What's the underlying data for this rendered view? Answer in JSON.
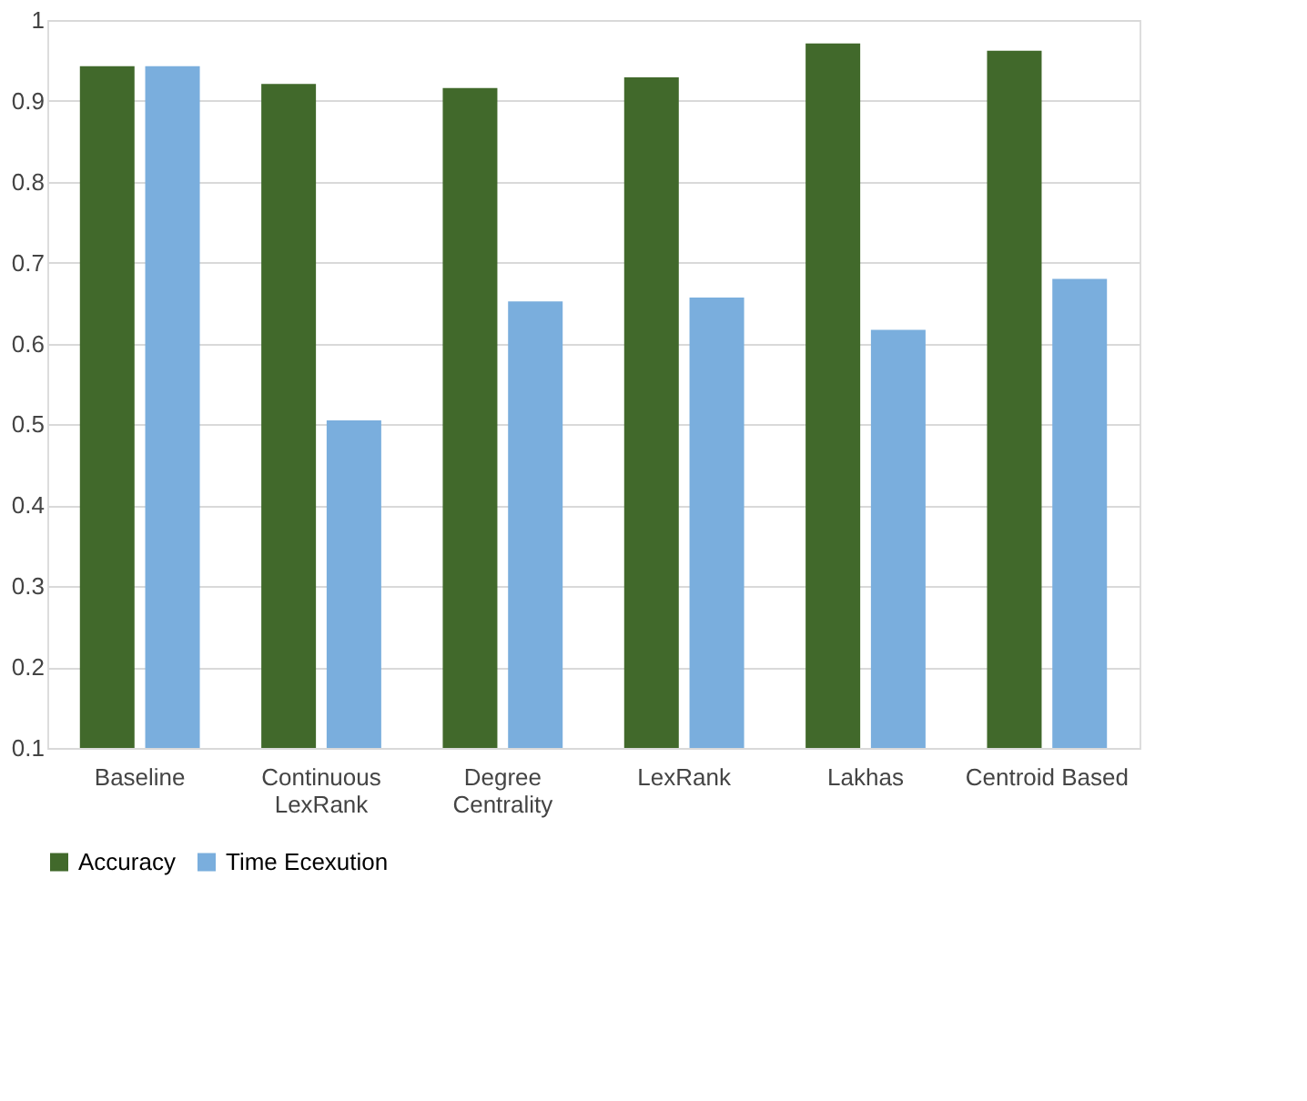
{
  "chart_data": {
    "type": "bar",
    "categories": [
      "Baseline",
      "Continuous\nLexRank",
      "Degree\nCentrality",
      "LexRank",
      "Lakhas",
      "Centroid Based"
    ],
    "series": [
      {
        "name": "Accuracy",
        "color": "#41692b",
        "values": [
          0.943,
          0.921,
          0.916,
          0.929,
          0.971,
          0.962
        ]
      },
      {
        "name": "Time Ecexution",
        "color": "#7aaedd",
        "values": [
          0.943,
          0.505,
          0.652,
          0.657,
          0.617,
          0.68
        ]
      }
    ],
    "ylim": [
      0.1,
      1
    ],
    "yticks": [
      0.1,
      0.2,
      0.3,
      0.4,
      0.5,
      0.6,
      0.7,
      0.8,
      0.9,
      1
    ],
    "grid": "y",
    "legend": "bottom"
  }
}
